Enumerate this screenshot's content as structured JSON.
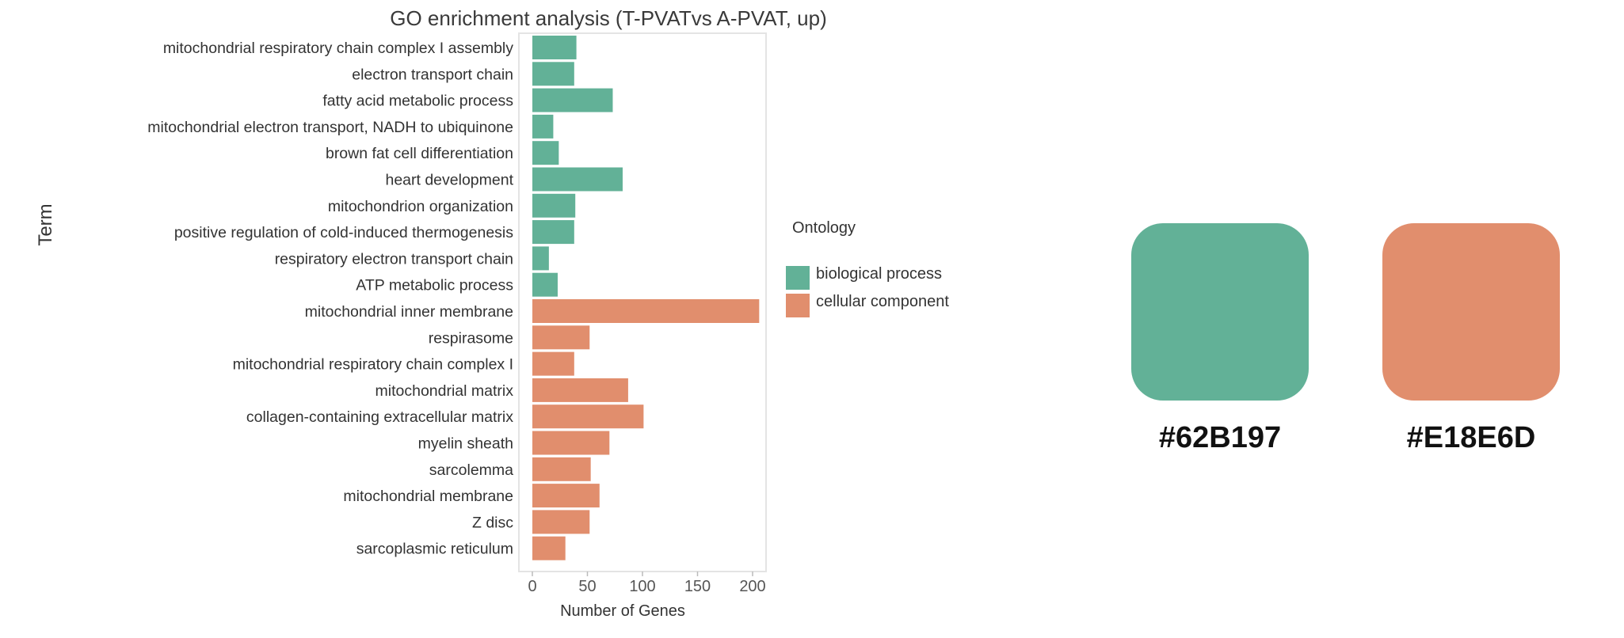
{
  "chart_data": {
    "type": "bar",
    "orientation": "horizontal",
    "title": "GO enrichment analysis (T-PVATvs A-PVAT, up)",
    "xlabel": "Number of Genes",
    "ylabel": "Term",
    "xlim": [
      0,
      210
    ],
    "xticks": [
      0,
      50,
      100,
      150,
      200
    ],
    "grid": false,
    "legend": {
      "title": "Ontology",
      "placement": "right",
      "entries": [
        {
          "name": "biological process",
          "color": "#62B197"
        },
        {
          "name": "cellular component",
          "color": "#E18E6D"
        }
      ]
    },
    "categories": [
      "mitochondrial respiratory chain complex I assembly",
      "electron transport chain",
      "fatty acid metabolic process",
      "mitochondrial electron transport, NADH to ubiquinone",
      "brown fat cell differentiation",
      "heart development",
      "mitochondrion organization",
      "positive regulation of cold-induced thermogenesis",
      "respiratory electron transport chain",
      "ATP metabolic process",
      "mitochondrial inner membrane",
      "respirasome",
      "mitochondrial respiratory chain complex I",
      "mitochondrial matrix",
      "collagen-containing extracellular matrix",
      "myelin sheath",
      "sarcolemma",
      "mitochondrial membrane",
      "Z disc",
      "sarcoplasmic reticulum"
    ],
    "values": [
      40,
      38,
      73,
      19,
      24,
      82,
      39,
      38,
      15,
      23,
      206,
      52,
      38,
      87,
      101,
      70,
      53,
      61,
      52,
      30
    ],
    "groups": [
      "biological process",
      "biological process",
      "biological process",
      "biological process",
      "biological process",
      "biological process",
      "biological process",
      "biological process",
      "biological process",
      "biological process",
      "cellular component",
      "cellular component",
      "cellular component",
      "cellular component",
      "cellular component",
      "cellular component",
      "cellular component",
      "cellular component",
      "cellular component",
      "cellular component"
    ]
  },
  "swatches": [
    {
      "color": "#62B197",
      "label": "#62B197"
    },
    {
      "color": "#E18E6D",
      "label": "#E18E6D"
    }
  ]
}
